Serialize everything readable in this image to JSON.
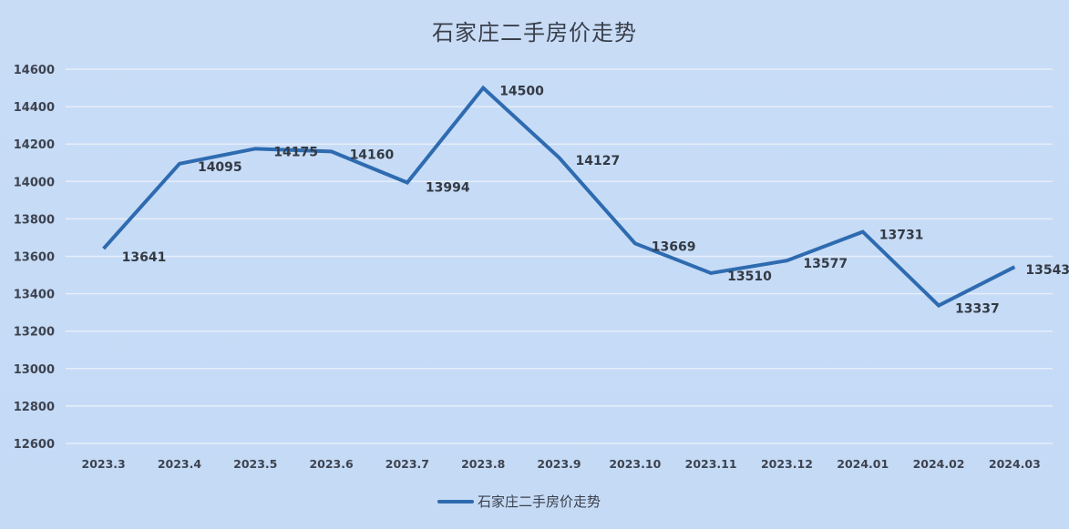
{
  "chart_data": {
    "type": "line",
    "title": "石家庄二手房价走势",
    "xlabel": "",
    "ylabel": "",
    "categories": [
      "2023.3",
      "2023.4",
      "2023.5",
      "2023.6",
      "2023.7",
      "2023.8",
      "2023.9",
      "2023.10",
      "2023.11",
      "2023.12",
      "2024.01",
      "2024.02",
      "2024.03"
    ],
    "series": [
      {
        "name": "石家庄二手房价走势",
        "color": "#2e6bb0",
        "values": [
          13641,
          14095,
          14175,
          14160,
          13994,
          14500,
          14127,
          13669,
          13510,
          13577,
          13731,
          13337,
          13543
        ]
      }
    ],
    "ylim": [
      12600,
      14600
    ],
    "yticks": [
      12600,
      12800,
      13000,
      13200,
      13400,
      13600,
      13800,
      14000,
      14200,
      14400,
      14600
    ],
    "grid": true,
    "legend_position": "bottom",
    "data_labels": true
  },
  "colors": {
    "background": "#c8dcf6",
    "line": "#2e6bb0",
    "grid": "#e6eef9",
    "text": "#3d4350"
  }
}
